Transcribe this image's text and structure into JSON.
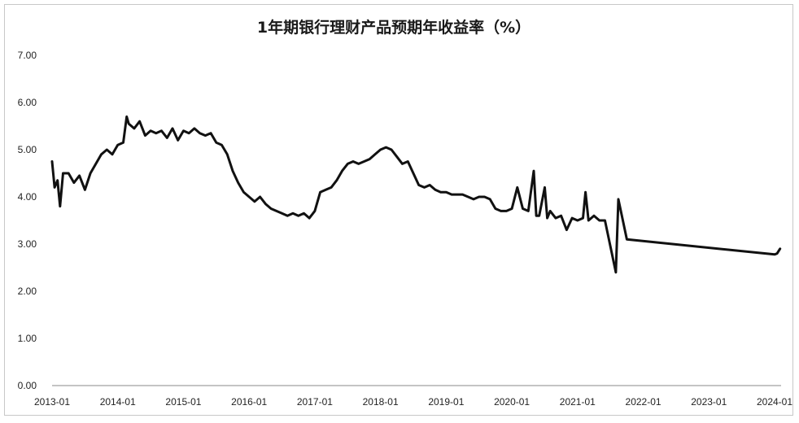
{
  "chart_data": {
    "type": "line",
    "title": "1年期银行理财产品预期年收益率（%）",
    "xlabel": "",
    "ylabel": "",
    "ylim": [
      0,
      7
    ],
    "y_ticks": [
      "0.00",
      "1.00",
      "2.00",
      "3.00",
      "4.00",
      "5.00",
      "6.00",
      "7.00"
    ],
    "x_ticks": [
      "2013-01",
      "2014-01",
      "2015-01",
      "2016-01",
      "2017-01",
      "2018-01",
      "2019-01",
      "2020-01",
      "2021-01",
      "2022-01",
      "2023-01",
      "2024-01"
    ],
    "grid": false,
    "legend": "none",
    "line_color": "#111111",
    "series": [
      {
        "values": [
          [
            "2013-01",
            4.75
          ],
          [
            "2013-01-15",
            4.2
          ],
          [
            "2013-02",
            4.35
          ],
          [
            "2013-02-15",
            3.8
          ],
          [
            "2013-03",
            4.5
          ],
          [
            "2013-04",
            4.5
          ],
          [
            "2013-05",
            4.3
          ],
          [
            "2013-06",
            4.45
          ],
          [
            "2013-07",
            4.15
          ],
          [
            "2013-08",
            4.5
          ],
          [
            "2013-09",
            4.7
          ],
          [
            "2013-10",
            4.9
          ],
          [
            "2013-11",
            5.0
          ],
          [
            "2013-12",
            4.9
          ],
          [
            "2014-01",
            5.1
          ],
          [
            "2014-02",
            5.15
          ],
          [
            "2014-02-20",
            5.7
          ],
          [
            "2014-03",
            5.55
          ],
          [
            "2014-04",
            5.45
          ],
          [
            "2014-05",
            5.6
          ],
          [
            "2014-06",
            5.3
          ],
          [
            "2014-07",
            5.4
          ],
          [
            "2014-08",
            5.35
          ],
          [
            "2014-09",
            5.4
          ],
          [
            "2014-10",
            5.25
          ],
          [
            "2014-11",
            5.45
          ],
          [
            "2014-12",
            5.2
          ],
          [
            "2015-01",
            5.4
          ],
          [
            "2015-02",
            5.35
          ],
          [
            "2015-03",
            5.45
          ],
          [
            "2015-04",
            5.35
          ],
          [
            "2015-05",
            5.3
          ],
          [
            "2015-06",
            5.35
          ],
          [
            "2015-07",
            5.15
          ],
          [
            "2015-08",
            5.1
          ],
          [
            "2015-09",
            4.9
          ],
          [
            "2015-10",
            4.55
          ],
          [
            "2015-11",
            4.3
          ],
          [
            "2015-12",
            4.1
          ],
          [
            "2016-01",
            4.0
          ],
          [
            "2016-02",
            3.9
          ],
          [
            "2016-03",
            4.0
          ],
          [
            "2016-04",
            3.85
          ],
          [
            "2016-05",
            3.75
          ],
          [
            "2016-06",
            3.7
          ],
          [
            "2016-07",
            3.65
          ],
          [
            "2016-08",
            3.6
          ],
          [
            "2016-09",
            3.65
          ],
          [
            "2016-10",
            3.6
          ],
          [
            "2016-11",
            3.65
          ],
          [
            "2016-12",
            3.55
          ],
          [
            "2017-01",
            3.7
          ],
          [
            "2017-02",
            4.1
          ],
          [
            "2017-03",
            4.15
          ],
          [
            "2017-04",
            4.2
          ],
          [
            "2017-05",
            4.35
          ],
          [
            "2017-06",
            4.55
          ],
          [
            "2017-07",
            4.7
          ],
          [
            "2017-08",
            4.75
          ],
          [
            "2017-09",
            4.7
          ],
          [
            "2017-10",
            4.75
          ],
          [
            "2017-11",
            4.8
          ],
          [
            "2017-12",
            4.9
          ],
          [
            "2018-01",
            5.0
          ],
          [
            "2018-02",
            5.05
          ],
          [
            "2018-03",
            5.0
          ],
          [
            "2018-04",
            4.85
          ],
          [
            "2018-05",
            4.7
          ],
          [
            "2018-06",
            4.75
          ],
          [
            "2018-07",
            4.5
          ],
          [
            "2018-08",
            4.25
          ],
          [
            "2018-09",
            4.2
          ],
          [
            "2018-10",
            4.25
          ],
          [
            "2018-11",
            4.15
          ],
          [
            "2018-12",
            4.1
          ],
          [
            "2019-01",
            4.1
          ],
          [
            "2019-02",
            4.05
          ],
          [
            "2019-03",
            4.05
          ],
          [
            "2019-04",
            4.05
          ],
          [
            "2019-05",
            4.0
          ],
          [
            "2019-06",
            3.95
          ],
          [
            "2019-07",
            4.0
          ],
          [
            "2019-08",
            4.0
          ],
          [
            "2019-09",
            3.95
          ],
          [
            "2019-10",
            3.75
          ],
          [
            "2019-11",
            3.7
          ],
          [
            "2019-12",
            3.7
          ],
          [
            "2020-01",
            3.75
          ],
          [
            "2020-02",
            4.2
          ],
          [
            "2020-03",
            3.75
          ],
          [
            "2020-04",
            3.7
          ],
          [
            "2020-05",
            4.55
          ],
          [
            "2020-05-15",
            3.6
          ],
          [
            "2020-06",
            3.6
          ],
          [
            "2020-07",
            4.2
          ],
          [
            "2020-07-15",
            3.55
          ],
          [
            "2020-08",
            3.7
          ],
          [
            "2020-09",
            3.55
          ],
          [
            "2020-10",
            3.6
          ],
          [
            "2020-11",
            3.3
          ],
          [
            "2020-12",
            3.55
          ],
          [
            "2021-01",
            3.5
          ],
          [
            "2021-02",
            3.55
          ],
          [
            "2021-02-15",
            4.1
          ],
          [
            "2021-03",
            3.5
          ],
          [
            "2021-04",
            3.6
          ],
          [
            "2021-05",
            3.5
          ],
          [
            "2021-06",
            3.5
          ],
          [
            "2021-08",
            2.4
          ],
          [
            "2021-08-15",
            3.95
          ],
          [
            "2021-10",
            3.1
          ],
          [
            "2024-01",
            2.78
          ],
          [
            "2024-01-15",
            2.8
          ],
          [
            "2024-02",
            2.9
          ]
        ]
      }
    ]
  }
}
